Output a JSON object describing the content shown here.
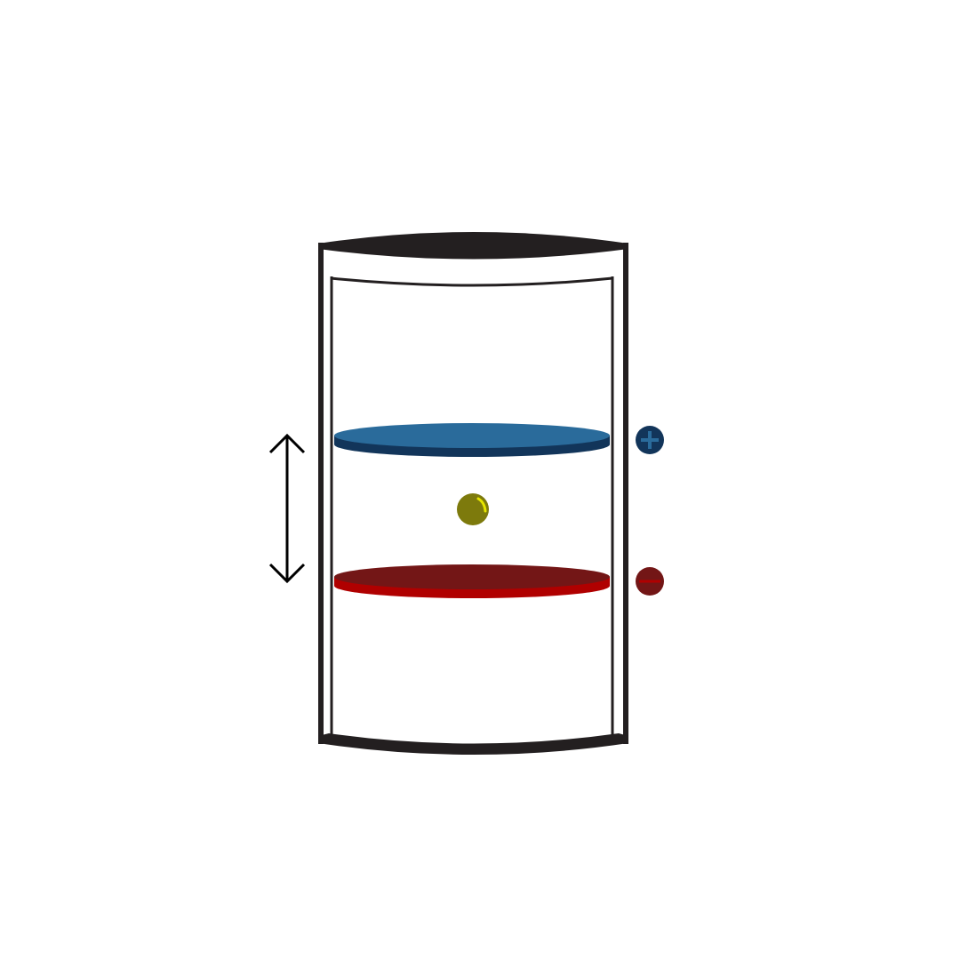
{
  "diagram": {
    "type": "parallel-plate-capacitor-chamber",
    "colors": {
      "background": "#ffffff",
      "chamber_outline": "#231f20",
      "positive_plate_top": "#2a6b9b",
      "positive_plate_edge": "#12355a",
      "negative_plate_top": "#731616",
      "negative_plate_edge": "#b00000",
      "positive_terminal": "#12355a",
      "positive_sign": "#2a6b9b",
      "negative_terminal": "#731616",
      "negative_sign": "#b00000",
      "particle": "#7d7a0c",
      "particle_highlight": "#e6e600",
      "arrow": "#000000"
    },
    "icons": {
      "positive_terminal": "plus-icon",
      "negative_terminal": "minus-icon",
      "direction_arrow": "double-headed-vertical-arrow-icon"
    }
  }
}
